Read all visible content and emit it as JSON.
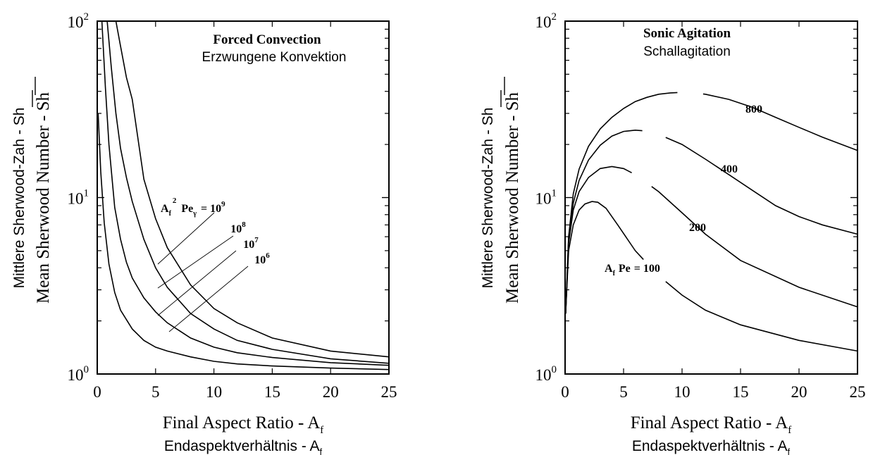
{
  "chart_data": [
    {
      "type": "line",
      "title": "Forced Convection",
      "subtitle": "Erzwungene Konvektion",
      "xlabel": "Final Aspect Ratio - A",
      "xlabel_sub": "f",
      "xlabel_de": "Endaspektverhältnis - A",
      "xlabel_de_sub": "f",
      "ylabel": "Mean Sherwood Number - Sh",
      "ylabel_de": "Mittlere Sherwood-Zah - Sh",
      "xlim": [
        0,
        25
      ],
      "ylim": [
        1,
        100
      ],
      "yscale": "log",
      "xticks": [
        "0",
        "5",
        "10",
        "15",
        "20",
        "25"
      ],
      "yticks": [
        {
          "base": "10",
          "exp": "0"
        },
        {
          "base": "10",
          "exp": "1"
        },
        {
          "base": "10",
          "exp": "2"
        }
      ],
      "grid": false,
      "param_label": {
        "a": "A",
        "a_sub": "f",
        "a_sup": "2",
        "pe": "Pe",
        "pe_sub": "γ",
        "eq": "= 10",
        "eq_sup": "9"
      },
      "series": [
        {
          "label": "10",
          "label_sup": "9",
          "x": [
            1.6,
            2.0,
            2.5,
            3.0,
            4.0,
            5.0,
            6.0,
            8.0,
            10.0,
            12.0,
            15.0,
            20.0,
            25.0
          ],
          "y": [
            100,
            72,
            48,
            36,
            12.7,
            7.6,
            5.2,
            3.2,
            2.35,
            1.95,
            1.6,
            1.35,
            1.25
          ]
        },
        {
          "label": "10",
          "label_sup": "8",
          "x": [
            0.85,
            1.2,
            1.6,
            2.0,
            2.5,
            3.0,
            4.0,
            5.0,
            6.0,
            8.0,
            10.0,
            12.0,
            15.0,
            20.0,
            25.0
          ],
          "y": [
            100,
            55,
            30,
            19,
            13,
            9.5,
            5.8,
            4.0,
            3.1,
            2.2,
            1.8,
            1.55,
            1.38,
            1.22,
            1.15
          ]
        },
        {
          "label": "10",
          "label_sup": "7",
          "x": [
            0.4,
            0.7,
            1.0,
            1.5,
            2.0,
            2.5,
            3.0,
            4.0,
            5.0,
            6.0,
            8.0,
            10.0,
            12.0,
            15.0,
            20.0,
            25.0
          ],
          "y": [
            100,
            42,
            20,
            8.8,
            5.8,
            4.3,
            3.5,
            2.7,
            2.25,
            1.95,
            1.6,
            1.42,
            1.32,
            1.24,
            1.16,
            1.12
          ]
        },
        {
          "label": "10",
          "label_sup": "6",
          "x": [
            0.08,
            0.3,
            0.6,
            1.0,
            1.5,
            2.0,
            3.0,
            4.0,
            5.0,
            6.0,
            8.0,
            10.0,
            12.0,
            15.0,
            20.0,
            25.0
          ],
          "y": [
            30,
            14,
            7.2,
            4.2,
            2.9,
            2.3,
            1.8,
            1.55,
            1.42,
            1.35,
            1.25,
            1.18,
            1.14,
            1.11,
            1.08,
            1.06
          ]
        }
      ]
    },
    {
      "type": "line",
      "title": "Sonic Agitation",
      "subtitle": "Schallagitation",
      "xlabel": "Final Aspect Ratio - A",
      "xlabel_sub": "f",
      "xlabel_de": "Endaspektverhältnis - A",
      "xlabel_de_sub": "f",
      "ylabel": "Mean Sherwood Number - Sh",
      "ylabel_de": "Mittlere Sherwood-Zah - Sh",
      "xlim": [
        0,
        25
      ],
      "ylim": [
        1,
        100
      ],
      "yscale": "log",
      "xticks": [
        "0",
        "5",
        "10",
        "15",
        "20",
        "25"
      ],
      "yticks": [
        {
          "base": "10",
          "exp": "0"
        },
        {
          "base": "10",
          "exp": "1"
        },
        {
          "base": "10",
          "exp": "2"
        }
      ],
      "grid": false,
      "param_label": {
        "a": "A",
        "a_sub": "f",
        "pe": "Pe",
        "eq": "= 100"
      },
      "series": [
        {
          "label": "800",
          "x": [
            0.05,
            0.3,
            0.7,
            1.2,
            2,
            3,
            4,
            5,
            6,
            7,
            8,
            9,
            10,
            11,
            12,
            14,
            16,
            18,
            20,
            22,
            25
          ],
          "y": [
            2.2,
            6,
            10.5,
            14.5,
            19.5,
            24.5,
            28.5,
            32,
            35,
            37,
            38.5,
            39.2,
            39.5,
            39.3,
            38.5,
            36,
            32.5,
            28.5,
            25,
            22,
            18.5
          ]
        },
        {
          "label": "400",
          "x": [
            0.05,
            0.3,
            0.7,
            1.2,
            2,
            3,
            4,
            5,
            6,
            7,
            8,
            10,
            12,
            14,
            16,
            18,
            20,
            22,
            25
          ],
          "y": [
            2.2,
            5.8,
            9.3,
            12.5,
            16.3,
            19.8,
            22.3,
            23.7,
            24.1,
            23.8,
            22.8,
            20,
            16.5,
            13.5,
            11,
            9,
            7.8,
            7,
            6.2
          ]
        },
        {
          "label": "200",
          "x": [
            0.05,
            0.3,
            0.7,
            1.2,
            2,
            3,
            4,
            5,
            6,
            8,
            10,
            12,
            15,
            20,
            25
          ],
          "y": [
            2.2,
            5.5,
            8.5,
            10.8,
            13,
            14.6,
            15,
            14.6,
            13.5,
            10.8,
            8.2,
            6.2,
            4.4,
            3.1,
            2.4
          ]
        },
        {
          "label": "100",
          "x": [
            0.05,
            0.3,
            0.7,
            1.2,
            1.7,
            2.3,
            2.8,
            3.5,
            4.5,
            6,
            8,
            10,
            12,
            15,
            20,
            25
          ],
          "y": [
            2.2,
            5,
            7,
            8.5,
            9.2,
            9.5,
            9.4,
            8.7,
            7,
            5,
            3.6,
            2.8,
            2.3,
            1.9,
            1.55,
            1.35
          ]
        }
      ]
    }
  ]
}
